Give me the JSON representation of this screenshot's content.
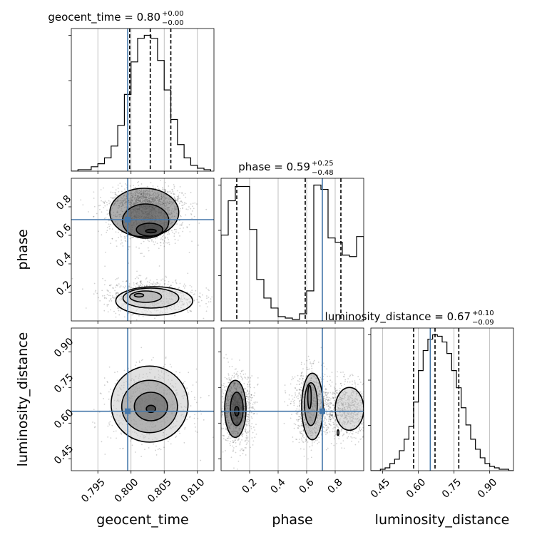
{
  "chart_data": {
    "type": "corner",
    "parameters": [
      "geocent_time",
      "phase",
      "luminosity_distance"
    ],
    "truths": {
      "geocent_time": 0.7995,
      "phase": 0.71,
      "luminosity_distance": 0.65
    },
    "colors": {
      "truth": "#4477aa",
      "hist": "#000000",
      "quantile": "#000000",
      "grid": "#b0b0b0"
    },
    "grid": true,
    "titles": [
      {
        "param": "geocent_time",
        "text": "geocent_time = 0.80",
        "sup": "+0.00",
        "sub": "−0.00"
      },
      {
        "param": "phase",
        "text": "phase = 0.59",
        "sup": "+0.25",
        "sub": "−0.48"
      },
      {
        "param": "luminosity_distance",
        "text": "luminosity_distance = 0.67",
        "sup": "+0.10",
        "sub": "−0.09"
      }
    ],
    "axes": {
      "geocent_time": {
        "label": "geocent_time",
        "range": [
          0.791,
          0.8125
        ],
        "ticks": [
          0.795,
          0.8,
          0.805,
          0.81
        ],
        "tick_labels": [
          "0.795",
          "0.800",
          "0.805",
          "0.810"
        ]
      },
      "phase": {
        "label": "phase",
        "range": [
          0.0,
          1.0
        ],
        "ticks": [
          0.2,
          0.4,
          0.6,
          0.8
        ],
        "tick_labels": [
          "0.2",
          "0.4",
          "0.6",
          "0.8"
        ]
      },
      "luminosity_distance": {
        "label": "luminosity_distance",
        "range": [
          0.4,
          1.0
        ],
        "ticks": [
          0.45,
          0.6,
          0.75,
          0.9
        ],
        "tick_labels": [
          "0.45",
          "0.60",
          "0.75",
          "0.90"
        ]
      }
    },
    "histograms": {
      "geocent_time": {
        "quantiles": [
          0.7998,
          0.8029,
          0.806
        ],
        "edges": [
          0.791,
          0.792,
          0.793,
          0.794,
          0.795,
          0.796,
          0.797,
          0.798,
          0.799,
          0.8,
          0.801,
          0.802,
          0.803,
          0.804,
          0.805,
          0.806,
          0.807,
          0.808,
          0.809,
          0.81,
          0.811,
          0.812
        ],
        "counts": [
          0,
          1,
          1,
          3,
          5,
          9,
          17,
          31,
          52,
          74,
          90,
          92,
          90,
          75,
          55,
          35,
          18,
          9,
          4,
          2,
          1
        ]
      },
      "phase": {
        "quantiles": [
          0.11,
          0.59,
          0.84
        ],
        "edges": [
          0.0,
          0.05,
          0.1,
          0.15,
          0.2,
          0.25,
          0.3,
          0.35,
          0.4,
          0.45,
          0.5,
          0.55,
          0.6,
          0.65,
          0.7,
          0.75,
          0.8,
          0.85,
          0.9,
          0.95,
          1.0
        ],
        "counts": [
          60,
          84,
          94,
          94,
          64,
          29,
          16,
          9,
          3,
          2,
          1,
          5,
          21,
          95,
          92,
          58,
          55,
          46,
          45,
          59
        ]
      },
      "luminosity_distance": {
        "quantiles": [
          0.58,
          0.67,
          0.77
        ],
        "edges": [
          0.4,
          0.42,
          0.44,
          0.46,
          0.48,
          0.5,
          0.52,
          0.54,
          0.56,
          0.58,
          0.6,
          0.62,
          0.64,
          0.66,
          0.68,
          0.7,
          0.72,
          0.74,
          0.76,
          0.78,
          0.8,
          0.82,
          0.84,
          0.86,
          0.88,
          0.9,
          0.92,
          0.94,
          0.96,
          0.98,
          1.0
        ],
        "counts": [
          0,
          0,
          1,
          2,
          5,
          8,
          14,
          22,
          31,
          48,
          70,
          84,
          92,
          95,
          94,
          90,
          82,
          70,
          58,
          44,
          32,
          22,
          15,
          9,
          5,
          3,
          2,
          1,
          1,
          0
        ]
      }
    },
    "pairs": [
      {
        "x": "geocent_time",
        "y": "phase",
        "clusters": [
          {
            "cx": 0.8025,
            "cy": 0.71,
            "sx": 0.0028,
            "sy": 0.09
          },
          {
            "cx": 0.8022,
            "cy": 0.84,
            "sx": 0.0026,
            "sy": 0.05
          },
          {
            "cx": 0.803,
            "cy": 0.17,
            "sx": 0.0035,
            "sy": 0.06
          }
        ],
        "contours": [
          {
            "cx": 0.803,
            "cy": 0.63,
            "rx": 0.0008,
            "ry": 0.012
          },
          {
            "cx": 0.8028,
            "cy": 0.64,
            "rx": 0.002,
            "ry": 0.045
          },
          {
            "cx": 0.8022,
            "cy": 0.7,
            "rx": 0.0035,
            "ry": 0.12
          },
          {
            "cx": 0.802,
            "cy": 0.76,
            "rx": 0.0052,
            "ry": 0.17
          },
          {
            "cx": 0.8012,
            "cy": 0.18,
            "rx": 0.0007,
            "ry": 0.012
          },
          {
            "cx": 0.8022,
            "cy": 0.17,
            "rx": 0.0024,
            "ry": 0.04
          },
          {
            "cx": 0.803,
            "cy": 0.16,
            "rx": 0.0042,
            "ry": 0.07
          },
          {
            "cx": 0.8035,
            "cy": 0.14,
            "rx": 0.0058,
            "ry": 0.1
          }
        ]
      },
      {
        "x": "geocent_time",
        "y": "luminosity_distance",
        "clusters": [
          {
            "cx": 0.8028,
            "cy": 0.67,
            "sx": 0.003,
            "sy": 0.075
          }
        ],
        "contours": [
          {
            "cx": 0.803,
            "cy": 0.66,
            "rx": 0.0007,
            "ry": 0.015
          },
          {
            "cx": 0.803,
            "cy": 0.67,
            "rx": 0.0025,
            "ry": 0.06
          },
          {
            "cx": 0.8028,
            "cy": 0.67,
            "rx": 0.0042,
            "ry": 0.11
          },
          {
            "cx": 0.8028,
            "cy": 0.68,
            "rx": 0.0058,
            "ry": 0.16
          }
        ]
      },
      {
        "x": "phase",
        "y": "luminosity_distance",
        "clusters": [
          {
            "cx": 0.11,
            "cy": 0.66,
            "sx": 0.06,
            "sy": 0.075
          },
          {
            "cx": 0.63,
            "cy": 0.67,
            "sx": 0.06,
            "sy": 0.075
          },
          {
            "cx": 0.88,
            "cy": 0.66,
            "sx": 0.1,
            "sy": 0.06
          }
        ],
        "contours": [
          {
            "cx": 0.11,
            "cy": 0.65,
            "rx": 0.015,
            "ry": 0.02
          },
          {
            "cx": 0.11,
            "cy": 0.66,
            "rx": 0.045,
            "ry": 0.07
          },
          {
            "cx": 0.1,
            "cy": 0.66,
            "rx": 0.075,
            "ry": 0.12
          },
          {
            "cx": 0.62,
            "cy": 0.71,
            "rx": 0.012,
            "ry": 0.05
          },
          {
            "cx": 0.63,
            "cy": 0.68,
            "rx": 0.045,
            "ry": 0.09
          },
          {
            "cx": 0.64,
            "cy": 0.67,
            "rx": 0.075,
            "ry": 0.14
          },
          {
            "cx": 0.9,
            "cy": 0.66,
            "rx": 0.1,
            "ry": 0.09
          },
          {
            "cx": 0.82,
            "cy": 0.56,
            "rx": 0.006,
            "ry": 0.012
          }
        ]
      }
    ]
  }
}
